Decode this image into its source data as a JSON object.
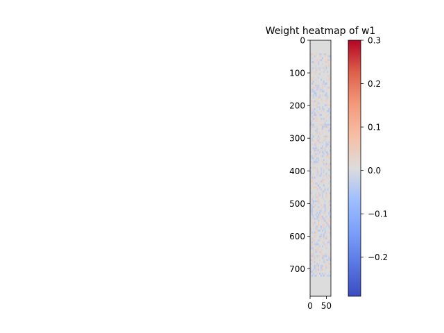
{
  "chart_data": {
    "type": "heatmap",
    "title": "Weight heatmap of w1",
    "xlabel": "",
    "ylabel": "",
    "shape": {
      "rows": 784,
      "cols": 64
    },
    "x_ticks": [
      0,
      50
    ],
    "y_ticks": [
      0,
      100,
      200,
      300,
      400,
      500,
      600,
      700
    ],
    "xlim": [
      0,
      64
    ],
    "ylim": [
      784,
      0
    ],
    "colormap": "coolwarm",
    "colorbar": {
      "vmin": -0.29,
      "vmax": 0.3,
      "ticks": [
        0.3,
        0.2,
        0.1,
        0.0,
        -0.1,
        -0.2
      ],
      "tick_labels": [
        "0.3",
        "0.2",
        "0.1",
        "0.0",
        "−0.1",
        "−0.2"
      ]
    },
    "typical_value_range": [
      -0.05,
      0.05
    ],
    "dominant_value": 0.0,
    "grid": false
  }
}
